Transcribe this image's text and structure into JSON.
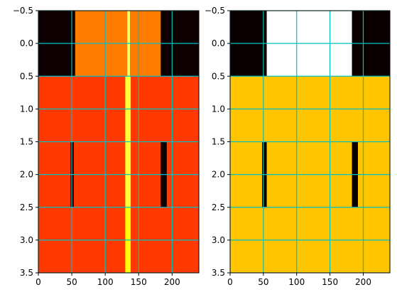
{
  "chart_data": [
    {
      "type": "heatmap",
      "colormap": "hot",
      "grid": true,
      "grid_color": "#00c0c0",
      "xlim": [
        0,
        240
      ],
      "ylim": [
        3.5,
        -0.5
      ],
      "x_ticks": [
        0,
        50,
        100,
        150,
        200
      ],
      "x_tick_labels": [
        "0",
        "50",
        "100",
        "150",
        "200"
      ],
      "y_ticks": [
        -0.5,
        0.0,
        0.5,
        1.0,
        1.5,
        2.0,
        2.5,
        3.0,
        3.5
      ],
      "y_tick_labels": [
        "−0.5",
        "0.0",
        "0.5",
        "1.0",
        "1.5",
        "2.0",
        "2.5",
        "3.0",
        "3.5"
      ],
      "rows": [
        {
          "row": 0,
          "segments": [
            {
              "x0": 0,
              "x1": 55,
              "value": 0.02
            },
            {
              "x0": 55,
              "x1": 133,
              "value": 0.55
            },
            {
              "x0": 133,
              "x1": 137,
              "value": 0.85
            },
            {
              "x0": 137,
              "x1": 183,
              "value": 0.55
            },
            {
              "x0": 183,
              "x1": 240,
              "value": 0.02
            }
          ]
        },
        {
          "row": 1,
          "segments": [
            {
              "x0": 0,
              "x1": 130,
              "value": 0.45
            },
            {
              "x0": 130,
              "x1": 138,
              "value": 0.8
            },
            {
              "x0": 138,
              "x1": 240,
              "value": 0.45
            }
          ]
        },
        {
          "row": 2,
          "segments": [
            {
              "x0": 0,
              "x1": 48,
              "value": 0.45
            },
            {
              "x0": 48,
              "x1": 53,
              "value": 0.02
            },
            {
              "x0": 53,
              "x1": 130,
              "value": 0.45
            },
            {
              "x0": 130,
              "x1": 138,
              "value": 0.8
            },
            {
              "x0": 138,
              "x1": 183,
              "value": 0.45
            },
            {
              "x0": 183,
              "x1": 192,
              "value": 0.02
            },
            {
              "x0": 192,
              "x1": 240,
              "value": 0.45
            }
          ]
        },
        {
          "row": 3,
          "segments": [
            {
              "x0": 0,
              "x1": 130,
              "value": 0.45
            },
            {
              "x0": 130,
              "x1": 138,
              "value": 0.75
            },
            {
              "x0": 138,
              "x1": 240,
              "value": 0.45
            }
          ]
        }
      ]
    },
    {
      "type": "heatmap",
      "colormap": "hot",
      "grid": true,
      "grid_color": "#00c0c0",
      "xlim": [
        0,
        240
      ],
      "ylim": [
        3.5,
        -0.5
      ],
      "x_ticks": [
        0,
        50,
        100,
        150,
        200
      ],
      "x_tick_labels": [
        "0",
        "50",
        "100",
        "150",
        "200"
      ],
      "y_ticks": [
        -0.5,
        0.0,
        0.5,
        1.0,
        1.5,
        2.0,
        2.5,
        3.0,
        3.5
      ],
      "y_tick_labels": [
        "−0.5",
        "0.0",
        "0.5",
        "1.0",
        "1.5",
        "2.0",
        "2.5",
        "3.0",
        "3.5"
      ],
      "rows": [
        {
          "row": 0,
          "segments": [
            {
              "x0": 0,
              "x1": 55,
              "value": 0.0
            },
            {
              "x0": 55,
              "x1": 183,
              "value": 1.0
            },
            {
              "x0": 183,
              "x1": 240,
              "value": 0.0
            }
          ]
        },
        {
          "row": 1,
          "segments": [
            {
              "x0": 0,
              "x1": 240,
              "value": 0.66
            }
          ]
        },
        {
          "row": 2,
          "segments": [
            {
              "x0": 0,
              "x1": 48,
              "value": 0.66
            },
            {
              "x0": 48,
              "x1": 55,
              "value": 0.0
            },
            {
              "x0": 55,
              "x1": 183,
              "value": 0.66
            },
            {
              "x0": 183,
              "x1": 192,
              "value": 0.0
            },
            {
              "x0": 192,
              "x1": 240,
              "value": 0.66
            }
          ]
        },
        {
          "row": 3,
          "segments": [
            {
              "x0": 0,
              "x1": 240,
              "value": 0.66
            }
          ]
        }
      ]
    }
  ]
}
